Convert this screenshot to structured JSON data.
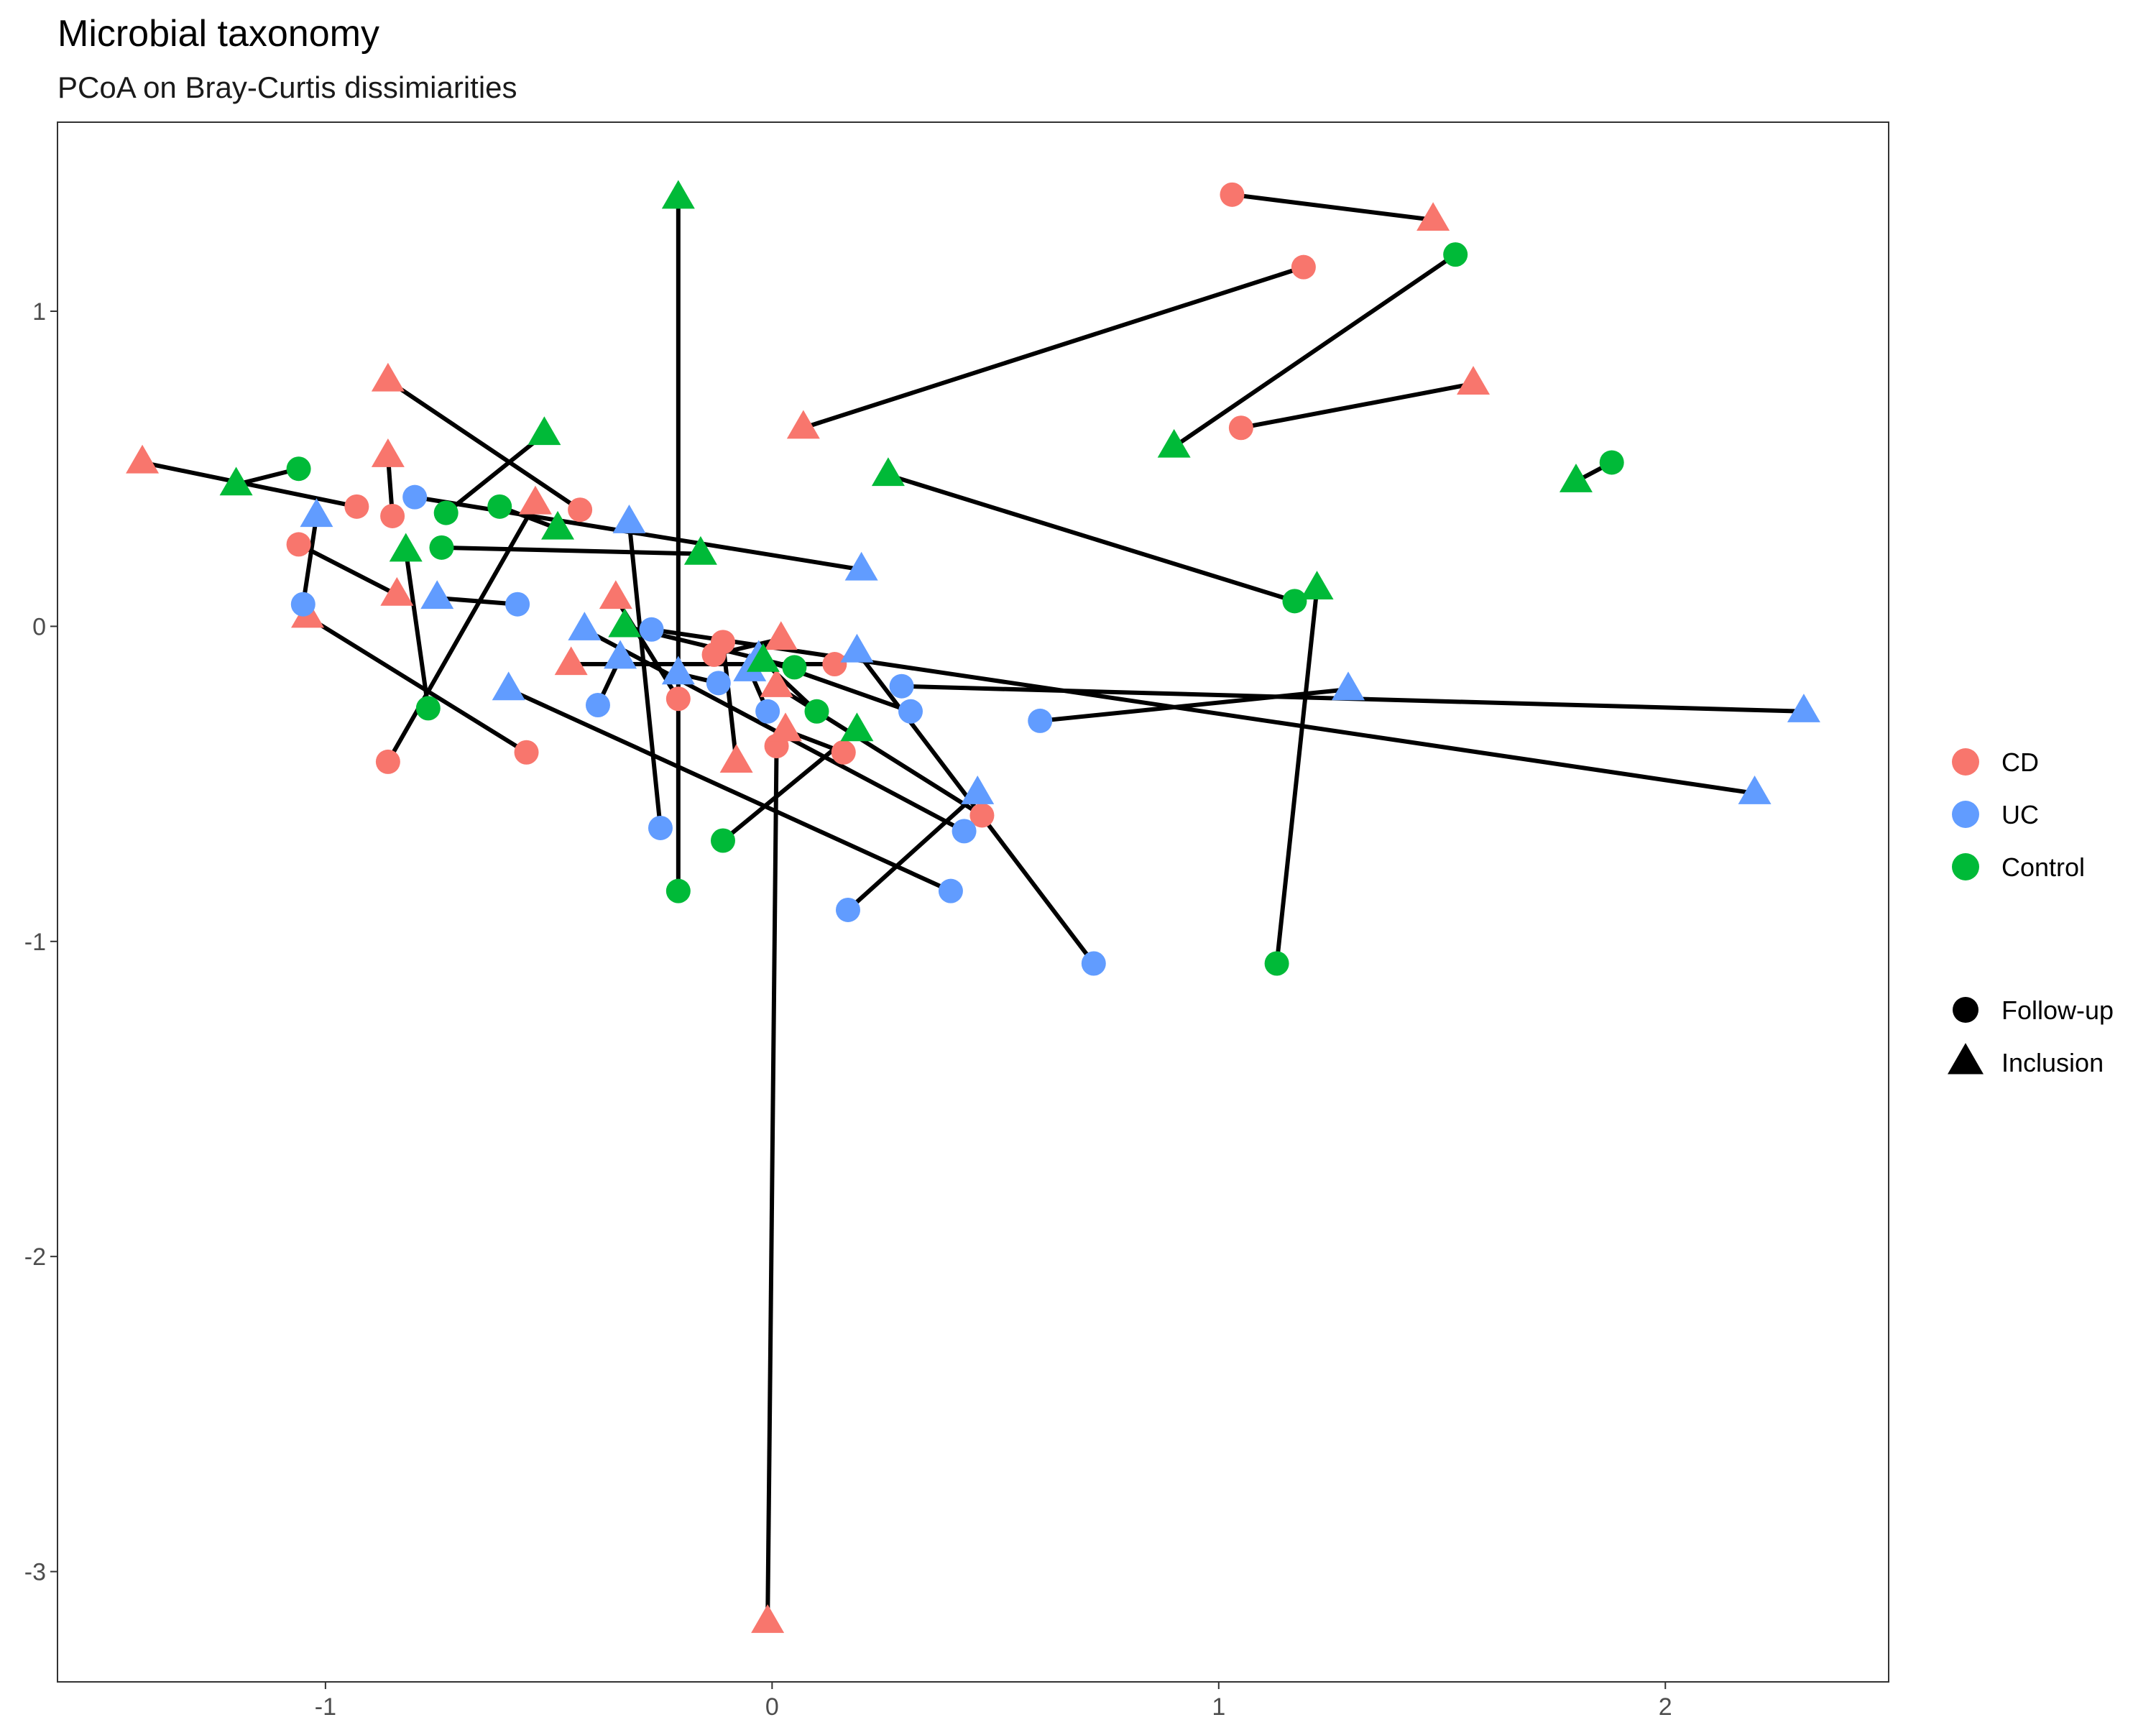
{
  "chart_data": {
    "type": "scatter",
    "title": "Microbial taxonomy",
    "subtitle": "PCoA on Bray-Curtis dissimiarities",
    "xlabel": "",
    "ylabel": "",
    "xlim": [
      -1.6,
      2.5
    ],
    "ylim": [
      -3.35,
      1.6
    ],
    "x_ticks": [
      -1,
      0,
      1,
      2
    ],
    "y_ticks": [
      1,
      0,
      -1,
      -2,
      -3
    ],
    "grid": false,
    "legend_position": "right",
    "colors": {
      "CD": "#F8766D",
      "UC": "#619CFF",
      "Control": "#00BA38"
    },
    "groups": [
      {
        "name": "CD",
        "color": "#F8766D"
      },
      {
        "name": "UC",
        "color": "#619CFF"
      },
      {
        "name": "Control",
        "color": "#00BA38"
      }
    ],
    "timepoints": [
      {
        "name": "Follow-up",
        "shape": "circle"
      },
      {
        "name": "Inclusion",
        "shape": "triangle"
      }
    ],
    "pairs": [
      {
        "group": "CD",
        "follow_up": [
          1.03,
          1.37
        ],
        "inclusion": [
          1.48,
          1.29
        ]
      },
      {
        "group": "CD",
        "follow_up": [
          1.19,
          1.14
        ],
        "inclusion": [
          0.07,
          0.63
        ]
      },
      {
        "group": "CD",
        "follow_up": [
          1.05,
          0.63
        ],
        "inclusion": [
          1.57,
          0.77
        ]
      },
      {
        "group": "CD",
        "follow_up": [
          -0.43,
          0.37
        ],
        "inclusion": [
          -0.86,
          0.78
        ]
      },
      {
        "group": "CD",
        "follow_up": [
          -0.93,
          0.38
        ],
        "inclusion": [
          -1.41,
          0.52
        ]
      },
      {
        "group": "CD",
        "follow_up": [
          -0.85,
          0.35
        ],
        "inclusion": [
          -0.86,
          0.54
        ]
      },
      {
        "group": "CD",
        "follow_up": [
          -1.06,
          0.26
        ],
        "inclusion": [
          -0.84,
          0.1
        ]
      },
      {
        "group": "CD",
        "follow_up": [
          -0.86,
          -0.43
        ],
        "inclusion": [
          -0.53,
          0.39
        ]
      },
      {
        "group": "CD",
        "follow_up": [
          -0.55,
          -0.4
        ],
        "inclusion": [
          -1.04,
          0.03
        ]
      },
      {
        "group": "CD",
        "follow_up": [
          -0.21,
          -0.23
        ],
        "inclusion": [
          -0.35,
          0.09
        ]
      },
      {
        "group": "CD",
        "follow_up": [
          -0.11,
          -0.05
        ],
        "inclusion": [
          -0.08,
          -0.43
        ]
      },
      {
        "group": "CD",
        "follow_up": [
          0.14,
          -0.12
        ],
        "inclusion": [
          -0.45,
          -0.12
        ]
      },
      {
        "group": "CD",
        "follow_up": [
          -0.13,
          -0.09
        ],
        "inclusion": [
          0.02,
          -0.04
        ]
      },
      {
        "group": "CD",
        "follow_up": [
          0.01,
          -0.38
        ],
        "inclusion": [
          -0.01,
          -3.16
        ]
      },
      {
        "group": "CD",
        "follow_up": [
          0.47,
          -0.6
        ],
        "inclusion": [
          0.01,
          -0.19
        ]
      },
      {
        "group": "CD",
        "follow_up": [
          0.16,
          -0.4
        ],
        "inclusion": [
          0.03,
          -0.33
        ]
      },
      {
        "group": "UC",
        "follow_up": [
          -0.8,
          0.41
        ],
        "inclusion": [
          0.2,
          0.18
        ]
      },
      {
        "group": "UC",
        "follow_up": [
          -1.05,
          0.07
        ],
        "inclusion": [
          -1.02,
          0.35
        ]
      },
      {
        "group": "UC",
        "follow_up": [
          -0.57,
          0.07
        ],
        "inclusion": [
          -0.75,
          0.09
        ]
      },
      {
        "group": "UC",
        "follow_up": [
          -0.25,
          -0.64
        ],
        "inclusion": [
          -0.32,
          0.33
        ]
      },
      {
        "group": "UC",
        "follow_up": [
          0.4,
          -0.84
        ],
        "inclusion": [
          -0.59,
          -0.2
        ]
      },
      {
        "group": "UC",
        "follow_up": [
          -0.27,
          -0.01
        ],
        "inclusion": [
          2.2,
          -0.53
        ]
      },
      {
        "group": "UC",
        "follow_up": [
          0.29,
          -0.19
        ],
        "inclusion": [
          2.31,
          -0.27
        ]
      },
      {
        "group": "UC",
        "follow_up": [
          0.6,
          -0.3
        ],
        "inclusion": [
          1.29,
          -0.2
        ]
      },
      {
        "group": "UC",
        "follow_up": [
          0.72,
          -1.07
        ],
        "inclusion": [
          0.19,
          -0.08
        ]
      },
      {
        "group": "UC",
        "follow_up": [
          0.17,
          -0.9
        ],
        "inclusion": [
          0.46,
          -0.53
        ]
      },
      {
        "group": "UC",
        "follow_up": [
          -0.39,
          -0.25
        ],
        "inclusion": [
          -0.34,
          -0.1
        ]
      },
      {
        "group": "UC",
        "follow_up": [
          0.43,
          -0.65
        ],
        "inclusion": [
          -0.42,
          -0.01
        ]
      },
      {
        "group": "UC",
        "follow_up": [
          -0.12,
          -0.18
        ],
        "inclusion": [
          -0.21,
          -0.15
        ]
      },
      {
        "group": "UC",
        "follow_up": [
          0.31,
          -0.27
        ],
        "inclusion": [
          -0.03,
          -0.1
        ]
      },
      {
        "group": "UC",
        "follow_up": [
          -0.01,
          -0.27
        ],
        "inclusion": [
          -0.05,
          -0.14
        ]
      },
      {
        "group": "Control",
        "follow_up": [
          1.53,
          1.18
        ],
        "inclusion": [
          0.9,
          0.57
        ]
      },
      {
        "group": "Control",
        "follow_up": [
          1.88,
          0.52
        ],
        "inclusion": [
          1.8,
          0.46
        ]
      },
      {
        "group": "Control",
        "follow_up": [
          1.17,
          0.08
        ],
        "inclusion": [
          0.26,
          0.48
        ]
      },
      {
        "group": "Control",
        "follow_up": [
          -1.06,
          0.5
        ],
        "inclusion": [
          -1.2,
          0.45
        ]
      },
      {
        "group": "Control",
        "follow_up": [
          -0.61,
          0.38
        ],
        "inclusion": [
          -0.48,
          0.31
        ]
      },
      {
        "group": "Control",
        "follow_up": [
          -0.73,
          0.36
        ],
        "inclusion": [
          -0.51,
          0.61
        ]
      },
      {
        "group": "Control",
        "follow_up": [
          -0.74,
          0.25
        ],
        "inclusion": [
          -0.16,
          0.23
        ]
      },
      {
        "group": "Control",
        "follow_up": [
          -0.77,
          -0.26
        ],
        "inclusion": [
          -0.82,
          0.24
        ]
      },
      {
        "group": "Control",
        "follow_up": [
          -0.21,
          -0.84
        ],
        "inclusion": [
          -0.21,
          1.36
        ]
      },
      {
        "group": "Control",
        "follow_up": [
          1.13,
          -1.07
        ],
        "inclusion": [
          1.22,
          0.12
        ]
      },
      {
        "group": "Control",
        "follow_up": [
          -0.11,
          -0.68
        ],
        "inclusion": [
          0.19,
          -0.33
        ]
      },
      {
        "group": "Control",
        "follow_up": [
          0.05,
          -0.13
        ],
        "inclusion": [
          -0.33,
          0.0
        ]
      },
      {
        "group": "Control",
        "follow_up": [
          0.1,
          -0.27
        ],
        "inclusion": [
          -0.02,
          -0.11
        ]
      }
    ]
  }
}
